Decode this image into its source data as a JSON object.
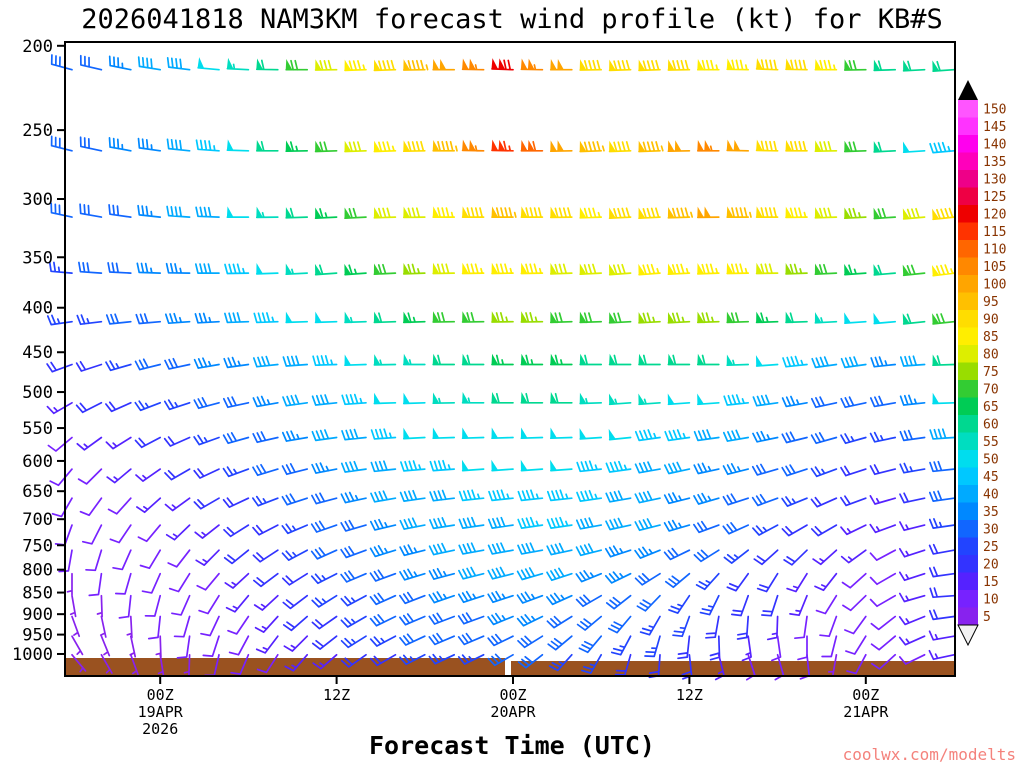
{
  "watermark": "coolwx.com/modelts",
  "colors": {
    "ground": "#9a5220",
    "watermark": "#f4827c",
    "colorbar_label": "#883300",
    "axis": "#000000"
  },
  "chart_data": {
    "type": "wind-barb-profile",
    "title": "2026041818 NAM3KM forecast wind profile (kt) for KB#S",
    "xlabel": "Forecast Time (UTC)",
    "ylabel": "",
    "pressure_levels_hpa": [
      200,
      250,
      300,
      350,
      400,
      450,
      500,
      550,
      600,
      650,
      700,
      750,
      800,
      850,
      900,
      950,
      1000
    ],
    "forecast_hours": [
      0,
      2,
      4,
      6,
      8,
      10,
      12,
      14,
      16,
      18,
      20,
      22,
      24,
      26,
      28,
      30,
      32,
      34,
      36,
      38,
      40,
      42,
      44,
      46,
      48,
      50,
      52,
      54,
      56,
      58,
      60
    ],
    "x_ticks": [
      {
        "hour": 6,
        "label": "00Z",
        "date": "19APR",
        "year": "2026"
      },
      {
        "hour": 18,
        "label": "12Z"
      },
      {
        "hour": 30,
        "label": "00Z",
        "date": "20APR"
      },
      {
        "hour": 42,
        "label": "12Z"
      },
      {
        "hour": 54,
        "label": "00Z",
        "date": "21APR"
      }
    ],
    "speed_kt": [
      [
        30,
        32,
        35,
        38,
        42,
        48,
        55,
        62,
        70,
        78,
        84,
        90,
        95,
        100,
        105,
        118,
        105,
        98,
        92,
        90,
        88,
        90,
        86,
        84,
        88,
        90,
        84,
        70,
        62,
        58,
        60
      ],
      [
        28,
        30,
        33,
        36,
        40,
        45,
        52,
        58,
        65,
        72,
        78,
        85,
        90,
        95,
        105,
        115,
        110,
        102,
        96,
        92,
        95,
        100,
        104,
        98,
        92,
        88,
        82,
        72,
        62,
        52,
        46
      ],
      [
        28,
        30,
        32,
        35,
        38,
        42,
        48,
        54,
        60,
        66,
        72,
        78,
        82,
        86,
        90,
        95,
        92,
        88,
        86,
        88,
        92,
        96,
        100,
        96,
        90,
        86,
        80,
        76,
        72,
        80,
        88
      ],
      [
        26,
        28,
        30,
        33,
        36,
        40,
        44,
        48,
        54,
        58,
        64,
        70,
        75,
        80,
        84,
        86,
        84,
        82,
        80,
        82,
        84,
        86,
        86,
        84,
        80,
        76,
        70,
        66,
        62,
        72,
        84
      ],
      [
        24,
        26,
        28,
        30,
        33,
        36,
        40,
        44,
        48,
        52,
        56,
        60,
        64,
        68,
        72,
        74,
        74,
        72,
        72,
        72,
        74,
        76,
        74,
        70,
        66,
        60,
        56,
        52,
        50,
        58,
        70
      ],
      [
        20,
        22,
        25,
        28,
        30,
        33,
        36,
        40,
        42,
        46,
        50,
        54,
        56,
        60,
        62,
        64,
        64,
        64,
        62,
        62,
        62,
        62,
        60,
        56,
        52,
        46,
        42,
        38,
        34,
        42,
        58
      ],
      [
        16,
        18,
        20,
        24,
        26,
        30,
        32,
        35,
        38,
        42,
        46,
        48,
        52,
        54,
        56,
        58,
        58,
        58,
        56,
        56,
        54,
        52,
        50,
        46,
        42,
        36,
        32,
        30,
        28,
        34,
        48
      ],
      [
        12,
        14,
        16,
        20,
        22,
        25,
        28,
        30,
        34,
        38,
        42,
        44,
        48,
        50,
        52,
        52,
        52,
        52,
        50,
        48,
        46,
        44,
        42,
        38,
        34,
        30,
        28,
        26,
        24,
        28,
        38
      ],
      [
        10,
        12,
        14,
        16,
        18,
        22,
        24,
        28,
        30,
        34,
        38,
        40,
        44,
        46,
        48,
        48,
        50,
        48,
        46,
        44,
        42,
        40,
        36,
        34,
        30,
        28,
        24,
        22,
        20,
        24,
        32
      ],
      [
        10,
        10,
        12,
        14,
        16,
        18,
        22,
        24,
        28,
        32,
        34,
        38,
        40,
        42,
        44,
        46,
        46,
        46,
        44,
        42,
        40,
        36,
        34,
        30,
        28,
        24,
        22,
        18,
        16,
        20,
        28
      ],
      [
        8,
        10,
        10,
        12,
        14,
        16,
        20,
        22,
        26,
        30,
        32,
        36,
        38,
        40,
        42,
        42,
        44,
        44,
        42,
        40,
        38,
        34,
        32,
        28,
        26,
        22,
        18,
        16,
        14,
        16,
        24
      ],
      [
        8,
        8,
        10,
        10,
        12,
        14,
        18,
        20,
        24,
        28,
        30,
        34,
        36,
        38,
        40,
        40,
        40,
        40,
        38,
        36,
        34,
        32,
        28,
        26,
        22,
        20,
        16,
        14,
        12,
        14,
        20
      ],
      [
        6,
        8,
        8,
        10,
        10,
        12,
        16,
        18,
        22,
        26,
        28,
        32,
        34,
        36,
        38,
        38,
        38,
        38,
        36,
        34,
        32,
        28,
        26,
        22,
        20,
        16,
        14,
        12,
        12,
        14,
        20
      ],
      [
        6,
        6,
        8,
        8,
        10,
        12,
        14,
        16,
        20,
        24,
        26,
        30,
        32,
        34,
        36,
        36,
        36,
        34,
        32,
        30,
        28,
        26,
        24,
        20,
        18,
        14,
        12,
        10,
        10,
        14,
        18
      ],
      [
        5,
        6,
        6,
        8,
        8,
        10,
        12,
        16,
        18,
        22,
        26,
        28,
        30,
        32,
        32,
        34,
        34,
        32,
        30,
        28,
        26,
        24,
        20,
        18,
        16,
        12,
        10,
        10,
        10,
        14,
        18
      ],
      [
        5,
        5,
        6,
        6,
        8,
        10,
        12,
        14,
        16,
        20,
        24,
        26,
        28,
        30,
        30,
        32,
        32,
        30,
        28,
        26,
        24,
        20,
        18,
        16,
        12,
        10,
        8,
        8,
        10,
        14,
        16
      ],
      [
        5,
        5,
        5,
        6,
        6,
        8,
        10,
        12,
        14,
        16,
        20,
        22,
        24,
        26,
        26,
        28,
        28,
        26,
        24,
        22,
        20,
        18,
        16,
        12,
        10,
        8,
        6,
        8,
        10,
        12,
        14
      ]
    ],
    "direction_deg": [
      [
        285,
        283,
        281,
        279,
        277,
        275,
        273,
        271,
        270,
        269,
        268,
        268,
        269,
        270,
        271,
        272,
        271,
        270,
        269,
        268,
        268,
        269,
        270,
        271,
        272,
        271,
        270,
        269,
        268,
        267,
        266
      ],
      [
        284,
        282,
        280,
        278,
        276,
        274,
        272,
        270,
        269,
        268,
        268,
        268,
        269,
        270,
        271,
        271,
        270,
        269,
        268,
        268,
        268,
        269,
        270,
        271,
        271,
        270,
        269,
        268,
        267,
        266,
        265
      ],
      [
        282,
        280,
        278,
        276,
        274,
        272,
        270,
        269,
        268,
        267,
        267,
        268,
        269,
        270,
        270,
        270,
        270,
        269,
        268,
        267,
        267,
        268,
        269,
        270,
        270,
        269,
        268,
        267,
        266,
        265,
        264
      ],
      [
        275,
        274,
        273,
        272,
        271,
        270,
        269,
        268,
        267,
        266,
        266,
        267,
        268,
        269,
        269,
        269,
        269,
        268,
        267,
        266,
        266,
        267,
        268,
        269,
        269,
        268,
        267,
        266,
        265,
        264,
        263
      ],
      [
        262,
        263,
        264,
        265,
        266,
        267,
        268,
        268,
        268,
        268,
        268,
        268,
        268,
        269,
        269,
        269,
        269,
        268,
        268,
        267,
        267,
        267,
        268,
        268,
        268,
        268,
        267,
        266,
        265,
        264,
        264
      ],
      [
        250,
        252,
        254,
        256,
        258,
        260,
        262,
        264,
        266,
        268,
        268,
        269,
        270,
        270,
        270,
        270,
        270,
        270,
        270,
        270,
        270,
        270,
        270,
        268,
        266,
        264,
        262,
        262,
        264,
        266,
        268
      ],
      [
        240,
        243,
        246,
        249,
        252,
        255,
        258,
        260,
        262,
        264,
        266,
        268,
        268,
        269,
        270,
        270,
        270,
        270,
        268,
        266,
        266,
        266,
        266,
        264,
        262,
        260,
        258,
        258,
        260,
        264,
        268
      ],
      [
        230,
        234,
        238,
        242,
        246,
        250,
        254,
        257,
        260,
        262,
        264,
        266,
        267,
        268,
        268,
        268,
        268,
        268,
        266,
        264,
        262,
        262,
        262,
        260,
        258,
        256,
        254,
        254,
        258,
        262,
        266
      ],
      [
        220,
        225,
        230,
        235,
        240,
        245,
        250,
        253,
        256,
        259,
        262,
        264,
        265,
        266,
        266,
        266,
        266,
        266,
        264,
        262,
        260,
        258,
        258,
        256,
        254,
        252,
        250,
        252,
        256,
        260,
        264
      ],
      [
        210,
        216,
        222,
        228,
        234,
        240,
        245,
        249,
        252,
        255,
        258,
        260,
        262,
        263,
        264,
        264,
        264,
        264,
        262,
        260,
        258,
        256,
        254,
        252,
        250,
        248,
        246,
        250,
        254,
        258,
        262
      ],
      [
        200,
        207,
        214,
        220,
        226,
        232,
        238,
        243,
        247,
        251,
        254,
        257,
        259,
        261,
        262,
        262,
        262,
        262,
        260,
        258,
        256,
        254,
        250,
        246,
        242,
        240,
        240,
        244,
        250,
        256,
        262
      ],
      [
        190,
        197,
        204,
        211,
        218,
        225,
        231,
        237,
        242,
        246,
        250,
        253,
        256,
        258,
        260,
        260,
        260,
        258,
        256,
        252,
        248,
        244,
        238,
        232,
        228,
        226,
        228,
        234,
        242,
        252,
        260
      ],
      [
        180,
        188,
        196,
        204,
        212,
        220,
        227,
        233,
        238,
        243,
        247,
        250,
        253,
        255,
        256,
        256,
        254,
        252,
        248,
        244,
        238,
        230,
        222,
        216,
        212,
        212,
        218,
        228,
        240,
        252,
        262
      ],
      [
        170,
        178,
        186,
        195,
        204,
        212,
        220,
        227,
        233,
        238,
        242,
        246,
        249,
        251,
        252,
        252,
        250,
        246,
        240,
        232,
        224,
        214,
        206,
        200,
        198,
        202,
        212,
        226,
        240,
        254,
        266
      ],
      [
        160,
        168,
        177,
        186,
        196,
        205,
        214,
        222,
        229,
        235,
        240,
        244,
        247,
        249,
        250,
        248,
        244,
        238,
        230,
        220,
        210,
        200,
        190,
        184,
        182,
        188,
        200,
        216,
        232,
        248,
        262
      ],
      [
        150,
        158,
        168,
        178,
        188,
        198,
        208,
        217,
        225,
        232,
        238,
        242,
        245,
        247,
        247,
        244,
        238,
        230,
        220,
        208,
        196,
        186,
        178,
        172,
        172,
        180,
        194,
        212,
        230,
        246,
        260
      ],
      [
        140,
        150,
        160,
        171,
        182,
        193,
        203,
        213,
        221,
        229,
        235,
        240,
        243,
        245,
        244,
        240,
        232,
        222,
        210,
        196,
        184,
        174,
        166,
        162,
        164,
        174,
        190,
        208,
        228,
        244,
        258
      ]
    ],
    "colorbar": {
      "values": [
        5,
        10,
        15,
        20,
        25,
        30,
        35,
        40,
        45,
        50,
        55,
        60,
        65,
        70,
        75,
        80,
        85,
        90,
        95,
        100,
        105,
        110,
        115,
        120,
        125,
        130,
        135,
        140,
        145,
        150
      ],
      "colors": [
        "#8822ee",
        "#7722ff",
        "#5522ff",
        "#3333ff",
        "#2244ff",
        "#1166ff",
        "#0088ff",
        "#00aaff",
        "#00c8ff",
        "#00ddee",
        "#00ddc0",
        "#00d890",
        "#00cc55",
        "#33cc33",
        "#99dd00",
        "#ddee00",
        "#ffee00",
        "#ffdd00",
        "#ffc000",
        "#ffa500",
        "#ff8800",
        "#ff6600",
        "#ff3300",
        "#ee0000",
        "#ee0044",
        "#ee0088",
        "#ff00bb",
        "#ff00ee",
        "#ff33ff",
        "#ff55ff"
      ]
    }
  }
}
